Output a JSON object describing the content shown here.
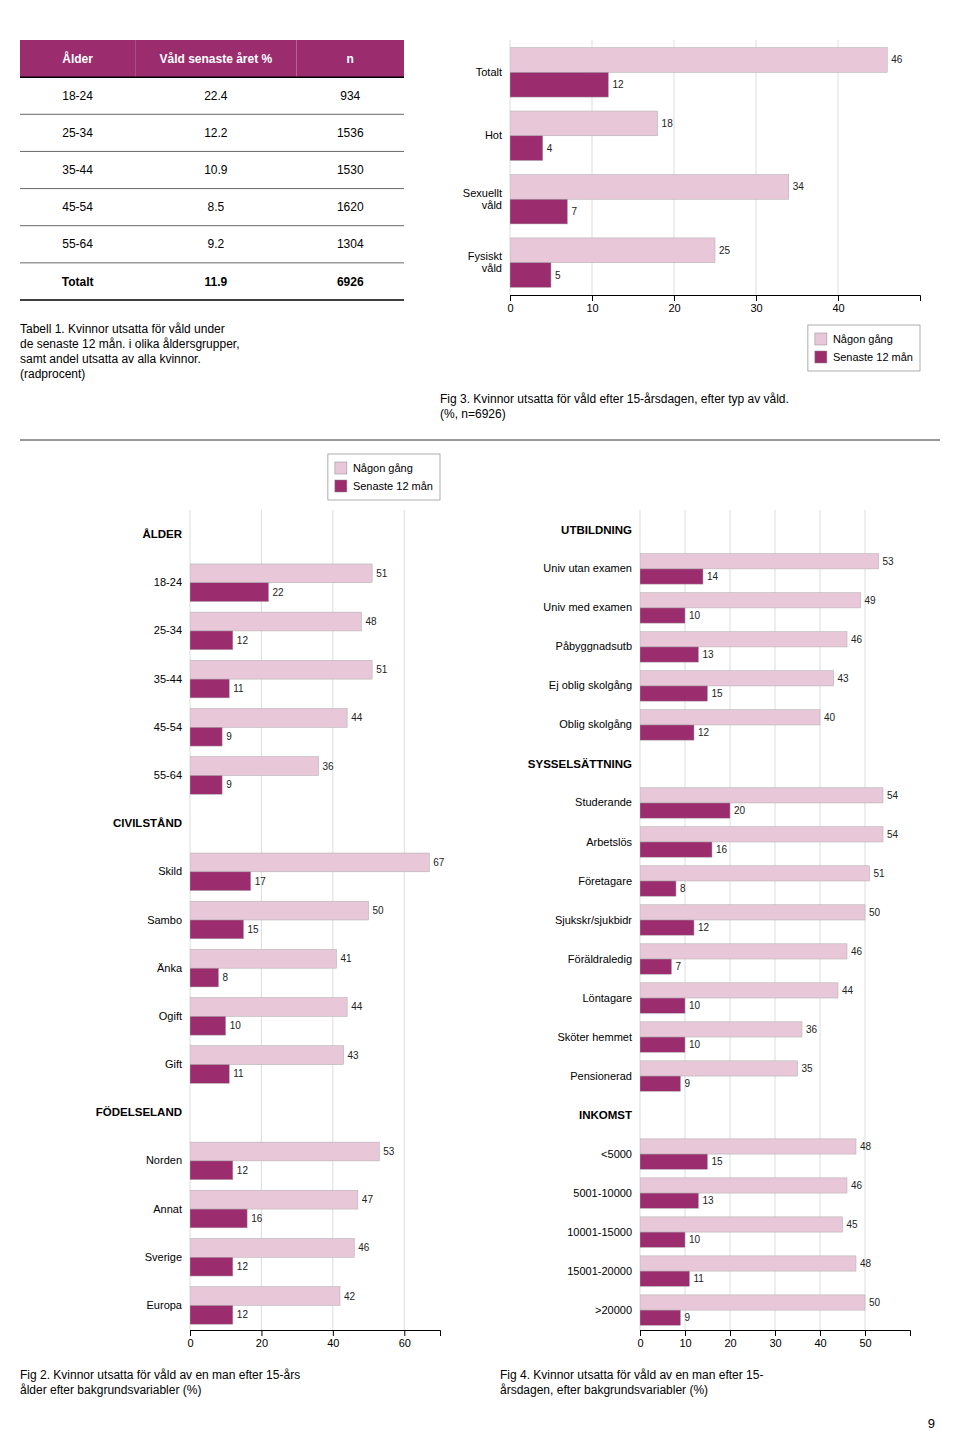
{
  "page_number": "9",
  "chart_data": [
    {
      "type": "table",
      "title": "Tabell 1. Kvinnor utsatta för våld under\nde senaste 12 mån. i olika åldersgrupper,\nsamt andel utsatta av alla kvinnor.\n(radprocent)",
      "headers": [
        "Ålder",
        "Våld senaste året %",
        "n"
      ],
      "rows": [
        [
          "18-24",
          "22.4",
          "934"
        ],
        [
          "25-34",
          "12.2",
          "1536"
        ],
        [
          "35-44",
          "10.9",
          "1530"
        ],
        [
          "45-54",
          "8.5",
          "1620"
        ],
        [
          "55-64",
          "9.2",
          "1304"
        ],
        [
          "Totalt",
          "11.9",
          "6926"
        ]
      ],
      "color": "#9B2D6E"
    },
    {
      "type": "bar",
      "title": "Fig 3. Kvinnor utsatta för våld efter 15-årsdagen, efter typ av våld.\n(%, n=6926)",
      "orientation": "horizontal",
      "categories": [
        "Totalt",
        "Hot",
        "Sexuellt\nvåld",
        "Fysiskt\nvåld"
      ],
      "series": [
        {
          "name": "Någon gång",
          "color": "#E8C8D8",
          "values": [
            46,
            18,
            34,
            25
          ]
        },
        {
          "name": "Senaste 12 mån",
          "color": "#9B2D6E",
          "values": [
            12,
            4,
            7,
            5
          ]
        }
      ],
      "xlim": [
        0,
        50
      ],
      "xticks": [
        0,
        10,
        20,
        30,
        40
      ],
      "grid": true,
      "legend": "lower right",
      "data_labels": true
    },
    {
      "type": "bar",
      "title": "Fig 2. Kvinnor utsatta för våld av en man efter 15-års\nålder efter bakgrundsvariabler (%)",
      "orientation": "horizontal",
      "categories": [
        "ÅLDER",
        "18-24",
        "25-34",
        "35-44",
        "45-54",
        "55-64",
        "CIVILSTÅND",
        "Skild",
        "Sambo",
        "Änka",
        "Ogift",
        "Gift",
        "FÖDELSELAND",
        "Norden",
        "Annat",
        "Sverige",
        "Europa"
      ],
      "series": [
        {
          "name": "Någon gång",
          "color": "#E8C8D8",
          "values": [
            null,
            51,
            48,
            51,
            44,
            36,
            null,
            67,
            50,
            41,
            44,
            43,
            null,
            53,
            47,
            46,
            42
          ]
        },
        {
          "name": "Senaste 12 mån",
          "color": "#9B2D6E",
          "values": [
            null,
            22,
            12,
            11,
            9,
            9,
            null,
            17,
            15,
            8,
            10,
            11,
            null,
            12,
            16,
            12,
            12
          ]
        }
      ],
      "xlim": [
        0,
        70
      ],
      "xticks": [
        0,
        20,
        40,
        60
      ],
      "grid": true,
      "legend": "upper right",
      "data_labels": true
    },
    {
      "type": "bar",
      "title": "Fig 4. Kvinnor utsatta för våld av en man efter 15-\nårsdagen, efter bakgrundsvariabler (%)",
      "orientation": "horizontal",
      "categories": [
        "UTBILDNING",
        "Univ utan examen",
        "Univ med examen",
        "Påbyggnadsutb",
        "Ej oblig skolgång",
        "Oblig skolgång",
        "SYSSELSÄTTNING",
        "Studerande",
        "Arbetslös",
        "Företagare",
        "Sjukskr/sjukbidr",
        "Föräldraledig",
        "Löntagare",
        "Sköter hemmet",
        "Pensionerad",
        "INKOMST",
        "<5000",
        "5001-10000",
        "10001-15000",
        "15001-20000",
        ">20000"
      ],
      "series": [
        {
          "name": "Någon gång",
          "color": "#E8C8D8",
          "values": [
            null,
            53,
            49,
            46,
            43,
            40,
            null,
            54,
            54,
            51,
            50,
            46,
            44,
            36,
            35,
            null,
            48,
            46,
            45,
            48,
            50
          ]
        },
        {
          "name": "Senaste 12 mån",
          "color": "#9B2D6E",
          "values": [
            null,
            14,
            10,
            13,
            15,
            12,
            null,
            20,
            16,
            8,
            12,
            7,
            10,
            10,
            9,
            null,
            15,
            13,
            10,
            11,
            9
          ]
        }
      ],
      "xlim": [
        0,
        60
      ],
      "xticks": [
        0,
        10,
        20,
        30,
        40,
        50
      ],
      "grid": true,
      "data_labels": true
    }
  ]
}
